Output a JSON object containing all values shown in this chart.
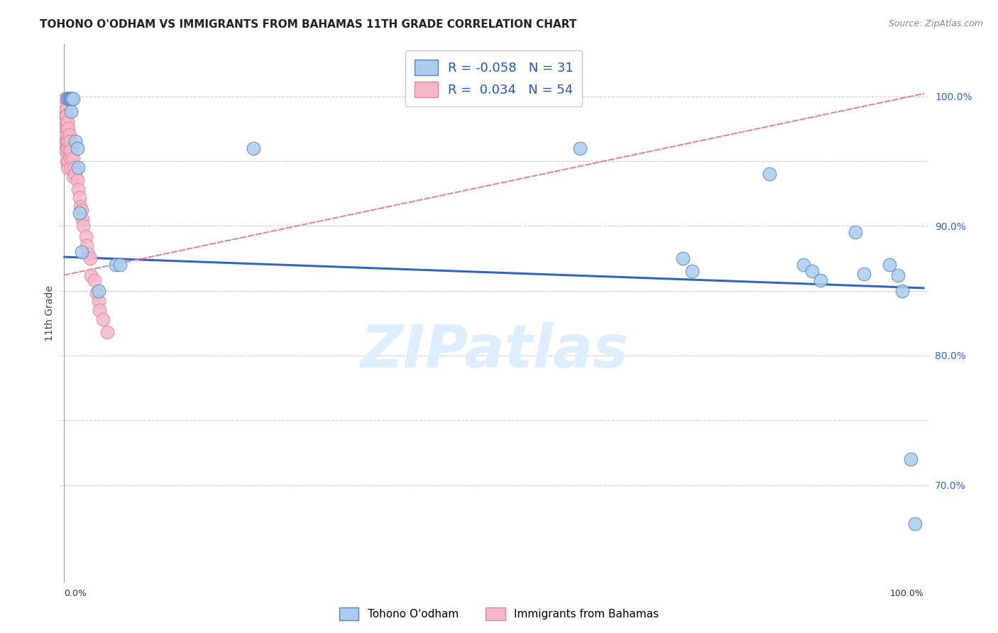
{
  "title": "TOHONO O'ODHAM VS IMMIGRANTS FROM BAHAMAS 11TH GRADE CORRELATION CHART",
  "source": "Source: ZipAtlas.com",
  "ylabel": "11th Grade",
  "watermark": "ZIPatlas",
  "legend_blue_label": "Tohono O'odham",
  "legend_pink_label": "Immigrants from Bahamas",
  "legend_blue_R": "R = -0.058",
  "legend_blue_N": "N =  31",
  "legend_pink_R": "R =  0.034",
  "legend_pink_N": "N =  54",
  "blue_scatter_x": [
    0.004,
    0.005,
    0.006,
    0.007,
    0.008,
    0.008,
    0.009,
    0.01,
    0.013,
    0.015,
    0.016,
    0.018,
    0.02,
    0.04,
    0.06,
    0.065,
    0.22,
    0.6,
    0.72,
    0.73,
    0.82,
    0.86,
    0.87,
    0.88,
    0.92,
    0.93,
    0.96,
    0.97,
    0.975,
    0.985,
    0.99
  ],
  "blue_scatter_y": [
    0.998,
    0.998,
    0.998,
    0.998,
    0.998,
    0.988,
    0.998,
    0.998,
    0.965,
    0.96,
    0.945,
    0.91,
    0.88,
    0.85,
    0.87,
    0.87,
    0.96,
    0.96,
    0.875,
    0.865,
    0.94,
    0.87,
    0.865,
    0.858,
    0.895,
    0.863,
    0.87,
    0.862,
    0.85,
    0.72,
    0.67
  ],
  "pink_scatter_x": [
    0.001,
    0.001,
    0.001,
    0.001,
    0.001,
    0.001,
    0.001,
    0.001,
    0.001,
    0.001,
    0.002,
    0.002,
    0.002,
    0.002,
    0.002,
    0.003,
    0.003,
    0.003,
    0.003,
    0.004,
    0.004,
    0.004,
    0.004,
    0.005,
    0.005,
    0.005,
    0.006,
    0.006,
    0.007,
    0.007,
    0.008,
    0.008,
    0.01,
    0.01,
    0.012,
    0.013,
    0.015,
    0.016,
    0.018,
    0.019,
    0.02,
    0.021,
    0.022,
    0.025,
    0.026,
    0.028,
    0.03,
    0.031,
    0.035,
    0.038,
    0.04,
    0.041,
    0.045,
    0.05
  ],
  "pink_scatter_y": [
    0.998,
    0.998,
    0.99,
    0.985,
    0.978,
    0.975,
    0.97,
    0.965,
    0.962,
    0.958,
    0.99,
    0.985,
    0.978,
    0.965,
    0.958,
    0.985,
    0.975,
    0.965,
    0.95,
    0.98,
    0.97,
    0.96,
    0.945,
    0.975,
    0.965,
    0.95,
    0.97,
    0.958,
    0.965,
    0.952,
    0.958,
    0.945,
    0.952,
    0.938,
    0.945,
    0.94,
    0.935,
    0.928,
    0.922,
    0.915,
    0.912,
    0.905,
    0.9,
    0.892,
    0.885,
    0.878,
    0.875,
    0.862,
    0.858,
    0.848,
    0.842,
    0.835,
    0.828,
    0.818
  ],
  "blue_line_x": [
    0.0,
    1.0
  ],
  "blue_line_y_start": 0.876,
  "blue_line_y_end": 0.852,
  "pink_line_x": [
    0.0,
    1.0
  ],
  "pink_line_y_start": 0.862,
  "pink_line_y_end": 1.002,
  "ytick_positions": [
    0.7,
    0.8,
    0.9,
    1.0
  ],
  "ytick_labels": [
    "70.0%",
    "80.0%",
    "90.0%",
    "100.0%"
  ],
  "grid_yticks": [
    0.7,
    0.75,
    0.8,
    0.85,
    0.9,
    0.95,
    1.0
  ],
  "ylim": [
    0.625,
    1.04
  ],
  "xlim": [
    -0.005,
    1.005
  ],
  "grid_color": "#cccccc",
  "blue_color": "#aaccee",
  "blue_edge_color": "#5588bb",
  "blue_line_color": "#3366bb",
  "pink_color": "#f5b8c8",
  "pink_edge_color": "#dd8899",
  "pink_line_color": "#dd8899",
  "bg_color": "#ffffff",
  "title_fontsize": 11,
  "source_fontsize": 9,
  "ylabel_fontsize": 10,
  "watermark_color": "#ddeeff",
  "watermark_fontsize": 60,
  "scatter_size": 180
}
